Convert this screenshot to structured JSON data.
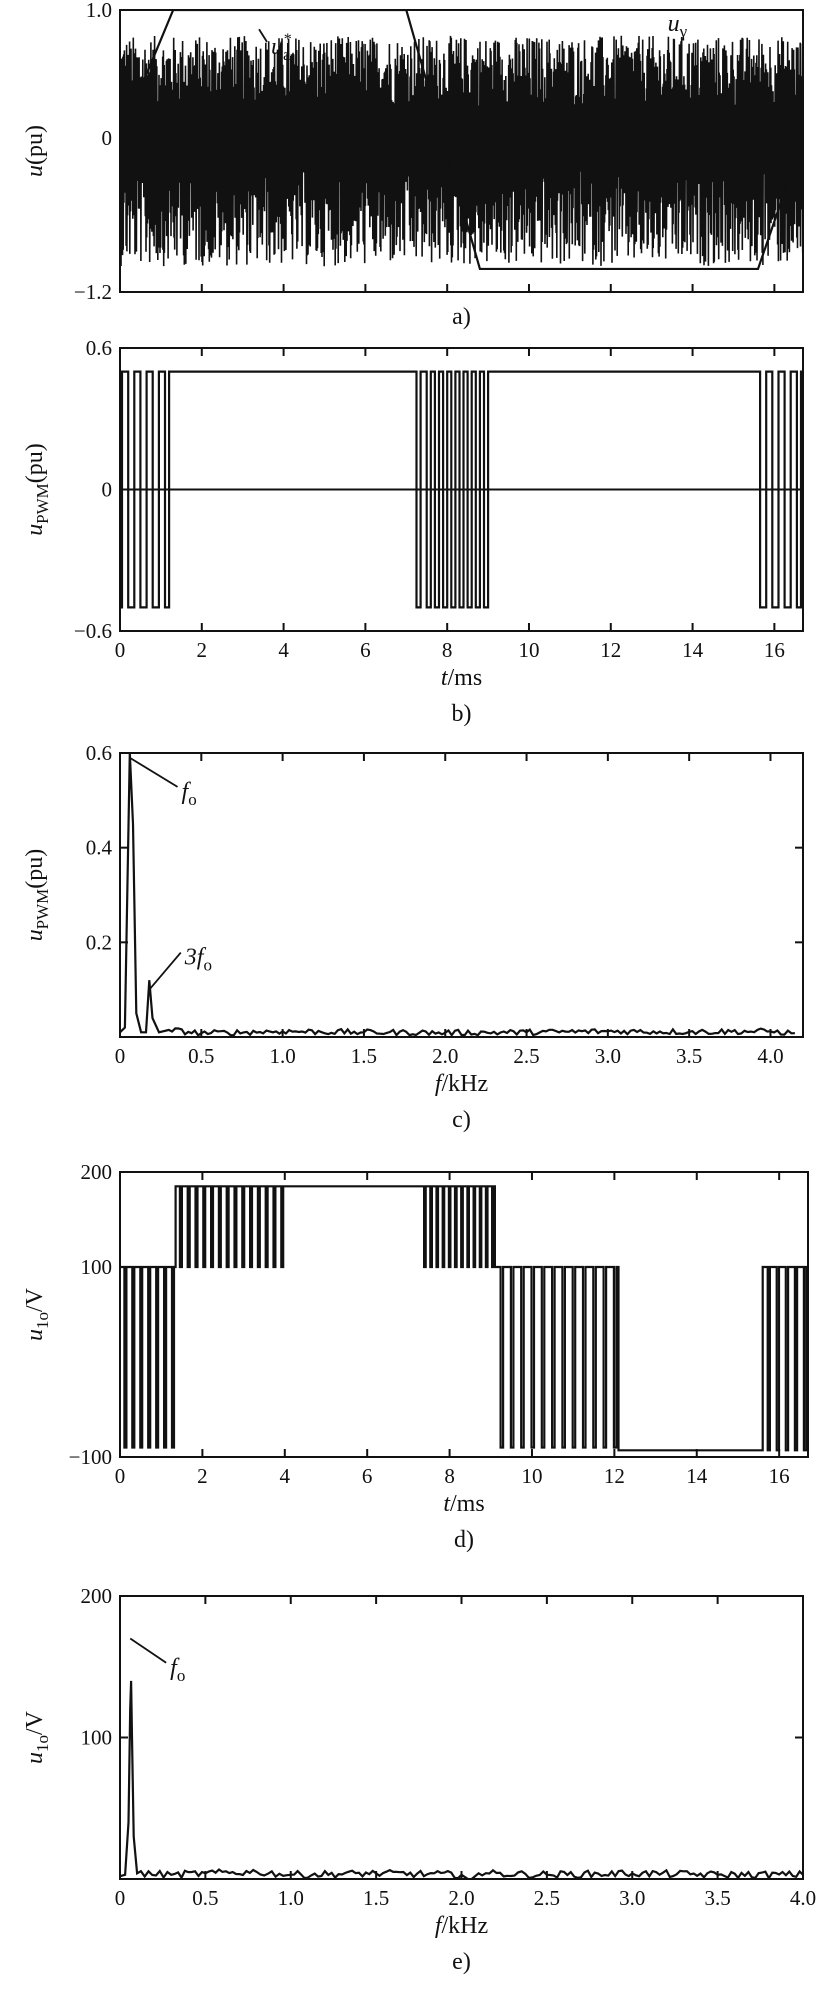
{
  "chart_data": [
    {
      "id": "a",
      "type": "line",
      "caption": "a)",
      "ylabel": "u(pu)",
      "xlim": [
        0,
        16.7
      ],
      "ylim": [
        -1.2,
        1.0
      ],
      "xticks": [],
      "yticks": [
        {
          "v": 1.0,
          "label": "1.0"
        },
        {
          "v": 0,
          "label": "0"
        },
        {
          "v": -1.2,
          "label": "-1.2"
        }
      ],
      "annotations": [
        {
          "text": "u",
          "sub": "a",
          "sup": "*",
          "x": 3.4,
          "y": 0.85,
          "tx": 3.3,
          "ty": 0.72
        },
        {
          "text": "u",
          "sub": "γ",
          "sup": "",
          "x": 13.0,
          "y": 0.9,
          "tx": 13.0,
          "ty": 0.9
        }
      ],
      "series": [
        {
          "name": "u_a*",
          "style": "trapezoid",
          "values": [
            [
              0,
              0
            ],
            [
              1.3,
              1.0
            ],
            [
              7.0,
              1.0
            ],
            [
              8.8,
              -1.02
            ],
            [
              15.6,
              -1.02
            ],
            [
              16.7,
              0
            ]
          ]
        },
        {
          "name": "u_γ",
          "style": "pwm_noise",
          "values": [
            [
              0,
              -1.0,
              0.8
            ],
            [
              16.7,
              -1.0,
              0.8
            ]
          ]
        }
      ]
    },
    {
      "id": "b",
      "type": "line",
      "caption": "b)",
      "xlabel": "t/ms",
      "ylabel": "u_PWM(pu)",
      "xlim": [
        0,
        16.7
      ],
      "ylim": [
        -0.6,
        0.6
      ],
      "xticks": [
        {
          "v": 0,
          "label": "0"
        },
        {
          "v": 2,
          "label": "2"
        },
        {
          "v": 4,
          "label": "4"
        },
        {
          "v": 6,
          "label": "6"
        },
        {
          "v": 8,
          "label": "8"
        },
        {
          "v": 10,
          "label": "10"
        },
        {
          "v": 12,
          "label": "12"
        },
        {
          "v": 14,
          "label": "14"
        },
        {
          "v": 16,
          "label": "16"
        }
      ],
      "yticks": [
        {
          "v": 0.6,
          "label": "0.6"
        },
        {
          "v": 0,
          "label": "0"
        },
        {
          "v": -0.6,
          "label": "-0.6"
        }
      ],
      "levels": [
        0.5,
        -0.5
      ],
      "switch_times": [
        0.05,
        0.2,
        0.35,
        0.5,
        0.65,
        0.8,
        0.95,
        1.1,
        1.2,
        7.25,
        7.35,
        7.5,
        7.6,
        7.7,
        7.8,
        7.9,
        8.0,
        8.1,
        8.2,
        8.3,
        8.4,
        8.5,
        8.6,
        8.7,
        8.8,
        8.9,
        9.0,
        15.65,
        15.8,
        15.95,
        16.1,
        16.25,
        16.4,
        16.55,
        16.65
      ]
    },
    {
      "id": "c",
      "type": "line",
      "caption": "c)",
      "xlabel": "f/kHz",
      "ylabel": "u_PWM(pu)",
      "xlim": [
        0,
        4.2
      ],
      "ylim": [
        0,
        0.6
      ],
      "xticks": [
        {
          "v": 0,
          "label": "0"
        },
        {
          "v": 0.5,
          "label": "0.5"
        },
        {
          "v": 1.0,
          "label": "1.0"
        },
        {
          "v": 1.5,
          "label": "1.5"
        },
        {
          "v": 2.0,
          "label": "2.0"
        },
        {
          "v": 2.5,
          "label": "2.5"
        },
        {
          "v": 3.0,
          "label": "3.0"
        },
        {
          "v": 3.5,
          "label": "3.5"
        },
        {
          "v": 4.0,
          "label": "4.0"
        }
      ],
      "yticks": [
        {
          "v": 0.6,
          "label": "0.6"
        },
        {
          "v": 0.4,
          "label": "0.4"
        },
        {
          "v": 0.2,
          "label": "0.2"
        }
      ],
      "annotations": [
        {
          "text": "f",
          "sub": "o",
          "sup": "",
          "x": 0.06,
          "y": 0.59,
          "tx": 0.28,
          "ty": 0.52
        },
        {
          "text": "3f",
          "sub": "o",
          "sup": "",
          "x": 0.18,
          "y": 0.1,
          "tx": 0.3,
          "ty": 0.17
        }
      ],
      "series": [
        {
          "name": "spectrum",
          "values": [
            [
              0.0,
              0.01
            ],
            [
              0.03,
              0.02
            ],
            [
              0.06,
              0.6
            ],
            [
              0.08,
              0.45
            ],
            [
              0.1,
              0.05
            ],
            [
              0.13,
              0.01
            ],
            [
              0.16,
              0.01
            ],
            [
              0.18,
              0.12
            ],
            [
              0.2,
              0.04
            ],
            [
              0.24,
              0.01
            ],
            [
              0.3,
              0.015
            ],
            [
              0.5,
              0.008
            ],
            [
              1.0,
              0.012
            ],
            [
              1.5,
              0.01
            ],
            [
              2.0,
              0.009
            ],
            [
              2.5,
              0.01
            ],
            [
              3.0,
              0.012
            ],
            [
              3.5,
              0.011
            ],
            [
              4.0,
              0.012
            ],
            [
              4.15,
              0.008
            ]
          ]
        }
      ]
    },
    {
      "id": "d",
      "type": "line",
      "caption": "d)",
      "xlabel": "t/ms",
      "ylabel": "u_1o/V",
      "xlim": [
        0,
        16.7
      ],
      "ylim": [
        -100,
        200
      ],
      "xticks": [
        {
          "v": 0,
          "label": "0"
        },
        {
          "v": 2,
          "label": "2"
        },
        {
          "v": 4,
          "label": "4"
        },
        {
          "v": 6,
          "label": "6"
        },
        {
          "v": 8,
          "label": "8"
        },
        {
          "v": 10,
          "label": "10"
        },
        {
          "v": 12,
          "label": "12"
        },
        {
          "v": 14,
          "label": "14"
        },
        {
          "v": 16,
          "label": "16"
        }
      ],
      "yticks": [
        {
          "v": 200,
          "label": "200"
        },
        {
          "v": 100,
          "label": "100"
        },
        {
          "v": -100,
          "label": "-100"
        }
      ],
      "segments": [
        {
          "t0": 0.0,
          "t1": 1.35,
          "hi": 100,
          "lo": -90,
          "n": 7
        },
        {
          "t0": 1.35,
          "t1": 4.0,
          "hi": 185,
          "lo": 100,
          "n": 14
        },
        {
          "t0": 4.0,
          "t1": 7.3,
          "hi": 185,
          "lo": 185,
          "n": 0
        },
        {
          "t0": 7.3,
          "t1": 9.1,
          "hi": 185,
          "lo": 100,
          "n": 12
        },
        {
          "t0": 9.1,
          "t1": 12.1,
          "hi": 100,
          "lo": -90,
          "n": 12
        },
        {
          "t0": 12.1,
          "t1": 15.6,
          "hi": -93,
          "lo": -93,
          "n": 0
        },
        {
          "t0": 15.6,
          "t1": 16.7,
          "hi": 100,
          "lo": -93,
          "n": 5
        }
      ]
    },
    {
      "id": "e",
      "type": "line",
      "caption": "e)",
      "xlabel": "f/kHz",
      "ylabel": "u_1o/V",
      "xlim": [
        0,
        4.0
      ],
      "ylim": [
        0,
        200
      ],
      "xticks": [
        {
          "v": 0,
          "label": "0"
        },
        {
          "v": 0.5,
          "label": "0.5"
        },
        {
          "v": 1.0,
          "label": "1.0"
        },
        {
          "v": 1.5,
          "label": "1.5"
        },
        {
          "v": 2.0,
          "label": "2.0"
        },
        {
          "v": 2.5,
          "label": "2.5"
        },
        {
          "v": 3.0,
          "label": "3.0"
        },
        {
          "v": 3.5,
          "label": "3.5"
        },
        {
          "v": 4.0,
          "label": "4.0"
        }
      ],
      "yticks": [
        {
          "v": 200,
          "label": "200"
        },
        {
          "v": 100,
          "label": "100"
        }
      ],
      "annotations": [
        {
          "text": "f",
          "sub": "o",
          "sup": "",
          "x": 0.06,
          "y": 170,
          "tx": 0.2,
          "ty": 150
        }
      ],
      "series": [
        {
          "name": "spectrum",
          "values": [
            [
              0.0,
              2
            ],
            [
              0.03,
              3
            ],
            [
              0.05,
              40
            ],
            [
              0.06,
              120
            ],
            [
              0.065,
              140
            ],
            [
              0.07,
              100
            ],
            [
              0.08,
              30
            ],
            [
              0.1,
              4
            ],
            [
              0.3,
              3
            ],
            [
              0.5,
              4
            ],
            [
              0.8,
              5
            ],
            [
              1.0,
              3
            ],
            [
              1.5,
              4
            ],
            [
              2.0,
              3
            ],
            [
              2.05,
              -1
            ],
            [
              2.1,
              4
            ],
            [
              2.5,
              3
            ],
            [
              3.0,
              4
            ],
            [
              3.5,
              3
            ],
            [
              4.0,
              3
            ]
          ]
        }
      ]
    }
  ]
}
